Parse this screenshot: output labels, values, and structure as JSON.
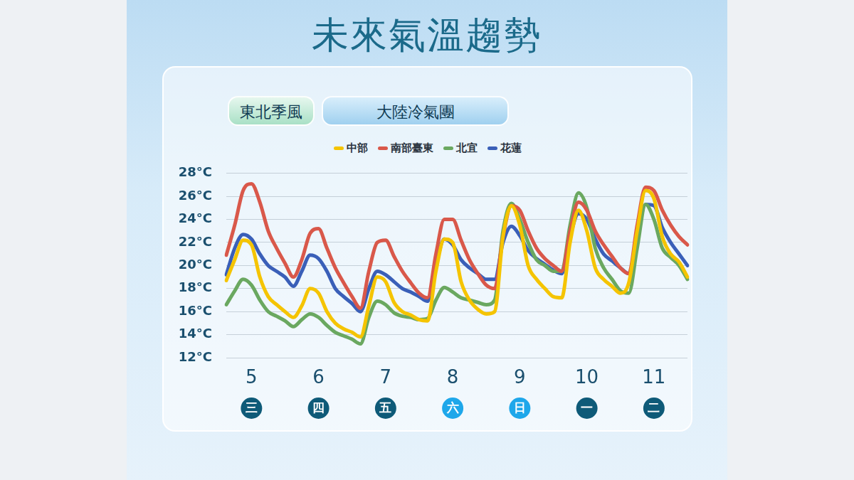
{
  "chart_data": {
    "type": "line",
    "title": "未來氣溫趨勢",
    "annotations": [
      "東北季風",
      "大陸冷氣團"
    ],
    "categories": [
      null,
      null,
      null,
      "5",
      null,
      null,
      null,
      null,
      null,
      null,
      null,
      "6",
      null,
      null,
      null,
      null,
      null,
      null,
      null,
      "7",
      null,
      null,
      null,
      null,
      null,
      null,
      null,
      "8",
      null,
      null,
      null,
      null,
      null,
      null,
      null,
      "9",
      null,
      null,
      null,
      null,
      null,
      null,
      null,
      "10",
      null,
      null,
      null,
      null,
      null,
      null,
      null,
      "11",
      null,
      null,
      null,
      null
    ],
    "weekdays": [
      null,
      null,
      null,
      "三",
      null,
      null,
      null,
      null,
      null,
      null,
      null,
      "四",
      null,
      null,
      null,
      null,
      null,
      null,
      null,
      "五",
      null,
      null,
      null,
      null,
      null,
      null,
      null,
      "六",
      null,
      null,
      null,
      null,
      null,
      null,
      null,
      "日",
      null,
      null,
      null,
      null,
      null,
      null,
      null,
      "一",
      null,
      null,
      null,
      null,
      null,
      null,
      null,
      "二",
      null,
      null,
      null,
      null
    ],
    "weekday_colors": [
      null,
      null,
      null,
      "#0e5a78",
      null,
      null,
      null,
      null,
      null,
      null,
      null,
      "#0e5a78",
      null,
      null,
      null,
      null,
      null,
      null,
      null,
      "#0e5a78",
      null,
      null,
      null,
      null,
      null,
      null,
      null,
      "#1ea7ea",
      null,
      null,
      null,
      null,
      null,
      null,
      null,
      "#1ea7ea",
      null,
      null,
      null,
      null,
      null,
      null,
      null,
      "#0e5a78",
      null,
      null,
      null,
      null,
      null,
      null,
      null,
      "#0e5a78",
      null,
      null,
      null,
      null
    ],
    "series": [
      {
        "name": "中部",
        "color": "#f5c400",
        "values": [
          18.7,
          20.5,
          22.2,
          21.8,
          19.0,
          17.3,
          16.6,
          16.0,
          15.5,
          16.5,
          18.0,
          17.6,
          16.0,
          15.0,
          14.5,
          14.2,
          13.8,
          16.5,
          19.0,
          18.6,
          16.8,
          16.0,
          15.7,
          15.3,
          15.2,
          19.5,
          22.3,
          22.0,
          18.6,
          17.0,
          16.2,
          15.8,
          16.0,
          22.5,
          25.2,
          23.5,
          20.0,
          18.8,
          18.0,
          17.3,
          17.2,
          22.0,
          24.8,
          23.0,
          19.8,
          18.8,
          18.2,
          17.6,
          18.5,
          23.0,
          26.5,
          25.8,
          22.5,
          21.0,
          20.3,
          19.0
        ]
      },
      {
        "name": "南部臺東",
        "color": "#d9584a",
        "values": [
          20.9,
          23.5,
          26.5,
          27.1,
          25.5,
          23.0,
          21.5,
          20.2,
          19.0,
          20.5,
          22.8,
          23.2,
          21.5,
          19.8,
          18.5,
          17.3,
          16.3,
          19.5,
          22.0,
          22.2,
          20.8,
          19.5,
          18.5,
          17.6,
          17.2,
          21.0,
          24.0,
          24.0,
          22.2,
          20.5,
          19.3,
          18.3,
          18.0,
          22.5,
          25.2,
          24.8,
          23.0,
          21.5,
          20.6,
          20.0,
          19.5,
          23.0,
          25.5,
          24.8,
          23.0,
          21.8,
          20.8,
          19.8,
          19.3,
          23.5,
          26.8,
          26.5,
          24.8,
          23.5,
          22.5,
          21.8
        ]
      },
      {
        "name": "北宜",
        "color": "#6aa860",
        "values": [
          16.6,
          17.8,
          18.8,
          18.3,
          17.0,
          16.0,
          15.6,
          15.2,
          14.7,
          15.3,
          15.8,
          15.5,
          14.8,
          14.2,
          13.9,
          13.6,
          13.2,
          15.5,
          16.9,
          16.6,
          15.9,
          15.6,
          15.5,
          15.3,
          15.4,
          17.0,
          18.1,
          17.7,
          17.2,
          17.0,
          16.8,
          16.6,
          17.0,
          23.0,
          25.4,
          24.0,
          22.0,
          20.5,
          20.0,
          19.5,
          19.5,
          23.5,
          26.3,
          25.0,
          21.5,
          19.8,
          18.8,
          17.8,
          17.6,
          21.5,
          25.3,
          24.0,
          21.5,
          20.7,
          20.0,
          18.8
        ]
      },
      {
        "name": "花蓮",
        "color": "#3a5fb8",
        "values": [
          19.2,
          21.5,
          22.7,
          22.3,
          21.0,
          20.0,
          19.5,
          19.0,
          18.2,
          19.5,
          20.9,
          20.6,
          19.5,
          18.0,
          17.3,
          16.7,
          16.0,
          18.0,
          19.5,
          19.2,
          18.6,
          18.0,
          17.7,
          17.3,
          16.9,
          20.0,
          22.3,
          21.8,
          20.5,
          19.8,
          19.3,
          18.8,
          18.8,
          22.0,
          23.4,
          22.6,
          21.3,
          20.6,
          20.1,
          19.6,
          19.3,
          22.5,
          24.5,
          24.0,
          22.3,
          21.0,
          20.4,
          19.8,
          19.3,
          22.5,
          25.3,
          25.2,
          23.3,
          22.0,
          21.0,
          20.0
        ]
      }
    ],
    "ylim": [
      12,
      28
    ],
    "yticks": [
      {
        "value": 12,
        "label": "12°C"
      },
      {
        "value": 14,
        "label": "14°C"
      },
      {
        "value": 16,
        "label": "16°C"
      },
      {
        "value": 18,
        "label": "18°C"
      },
      {
        "value": 20,
        "label": "20°C"
      },
      {
        "value": 22,
        "label": "22°C"
      },
      {
        "value": 24,
        "label": "24°C"
      },
      {
        "value": 26,
        "label": "26°C"
      },
      {
        "value": 28,
        "label": "28°C"
      }
    ],
    "grid": true,
    "legend": "top"
  }
}
